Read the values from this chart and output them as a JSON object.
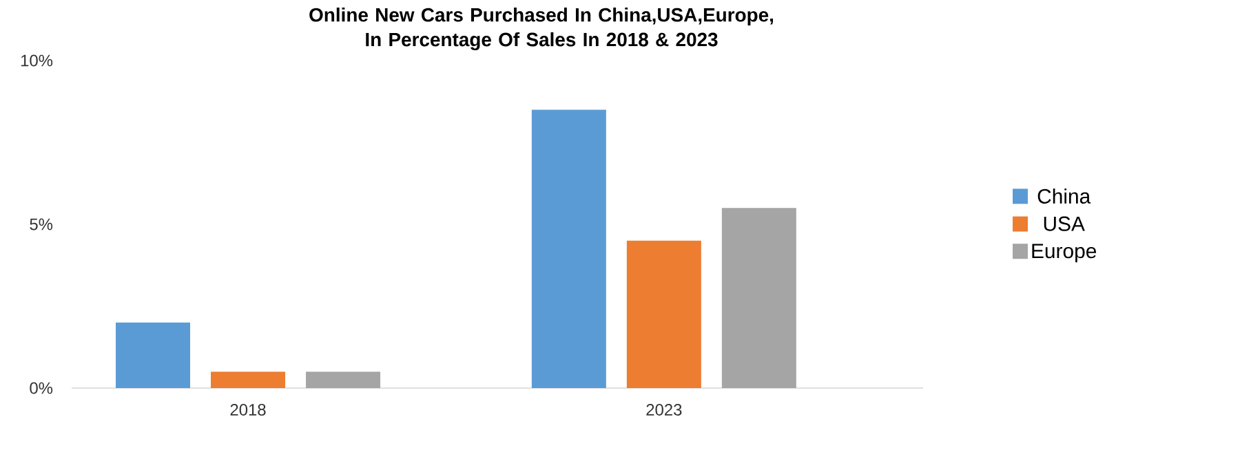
{
  "chart_data": {
    "type": "bar",
    "title": "Online New Cars Purchased In China,USA,Europe, In Percentage Of Sales In 2018 & 2023",
    "categories": [
      "2018",
      "2023"
    ],
    "series": [
      {
        "name": "China",
        "color": "#5b9bd5",
        "values": [
          2,
          8.5
        ]
      },
      {
        "name": "USA",
        "color": "#ed7d31",
        "values": [
          0.5,
          4.5
        ]
      },
      {
        "name": "Europe",
        "color": "#a5a5a5",
        "values": [
          0.5,
          5.5
        ]
      }
    ],
    "ylim": [
      0,
      10
    ],
    "yticks": [
      {
        "value": 0,
        "label": "0%"
      },
      {
        "value": 5,
        "label": "5%"
      },
      {
        "value": 10,
        "label": "10%"
      }
    ],
    "legend": "right"
  }
}
